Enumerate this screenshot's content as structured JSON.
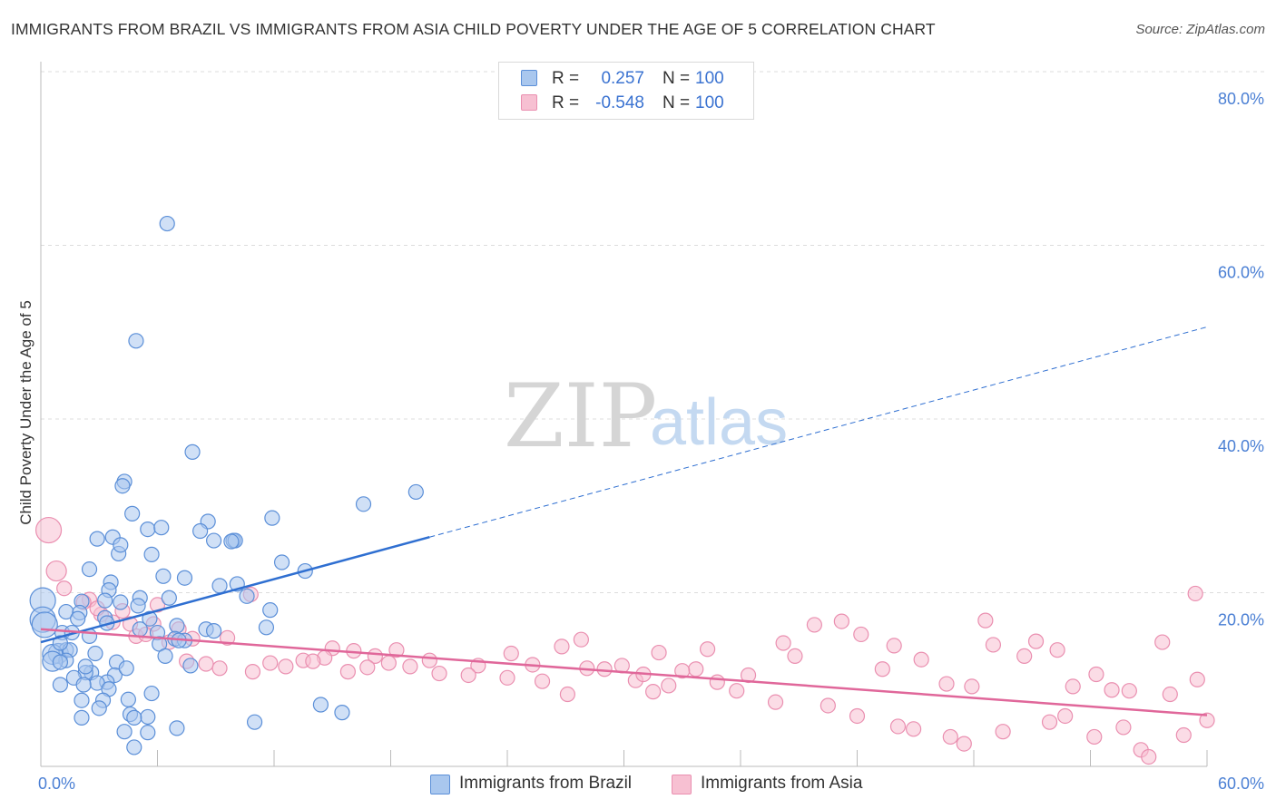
{
  "title": "IMMIGRANTS FROM BRAZIL VS IMMIGRANTS FROM ASIA CHILD POVERTY UNDER THE AGE OF 5 CORRELATION CHART",
  "source": "Source: ZipAtlas.com",
  "watermark": {
    "zip": "ZIP",
    "atlas": "atlas"
  },
  "legend": {
    "series1": {
      "r_label": "R =",
      "r_value": "0.257",
      "n_label": "N =",
      "n_value": "100"
    },
    "series2": {
      "r_label": "R =",
      "r_value": "-0.548",
      "n_label": "N =",
      "n_value": "100"
    }
  },
  "bottom_legend": {
    "series1": "Immigrants from Brazil",
    "series2": "Immigrants from Asia"
  },
  "colors": {
    "brazil_fill": "#a9c7ee",
    "brazil_stroke": "#5b8fd8",
    "brazil_line": "#2f6fd1",
    "asia_fill": "#f7c0d2",
    "asia_stroke": "#ea8fb0",
    "asia_line": "#e0679a",
    "tick": "#4a7fd4",
    "grid": "#dddddd"
  },
  "chart_data": {
    "type": "scatter",
    "title": "IMMIGRANTS FROM BRAZIL VS IMMIGRANTS FROM ASIA CHILD POVERTY UNDER THE AGE OF 5 CORRELATION CHART",
    "xlabel": "",
    "ylabel": "Child Poverty Under the Age of 5",
    "xlim": [
      0,
      60
    ],
    "ylim": [
      0,
      80
    ],
    "x_tick_labels": [
      "0.0%",
      "60.0%"
    ],
    "y_ticks": [
      20,
      40,
      60,
      80
    ],
    "y_tick_labels": [
      "20.0%",
      "40.0%",
      "60.0%",
      "80.0%"
    ],
    "grid": true,
    "legend_position": "top-center",
    "series": [
      {
        "name": "Immigrants from Brazil",
        "r": 0.257,
        "n": 100,
        "trend": {
          "x_solid": [
            0,
            20
          ],
          "y_solid": [
            14.3,
            26.4
          ],
          "x_dashed": [
            20,
            60
          ],
          "y_dashed": [
            26.4,
            50.6
          ]
        },
        "points": [
          [
            6.5,
            62.5
          ],
          [
            4.9,
            49.0
          ],
          [
            7.8,
            36.2
          ],
          [
            4.3,
            32.8
          ],
          [
            4.2,
            32.3
          ],
          [
            19.3,
            31.6
          ],
          [
            16.6,
            30.2
          ],
          [
            4.7,
            29.1
          ],
          [
            8.6,
            28.2
          ],
          [
            11.9,
            28.6
          ],
          [
            5.5,
            27.3
          ],
          [
            6.2,
            27.5
          ],
          [
            8.2,
            27.1
          ],
          [
            3.7,
            26.4
          ],
          [
            2.9,
            26.2
          ],
          [
            9.9,
            26.0
          ],
          [
            10.0,
            26.0
          ],
          [
            4.0,
            24.5
          ],
          [
            5.7,
            24.4
          ],
          [
            4.1,
            25.5
          ],
          [
            12.4,
            23.5
          ],
          [
            13.6,
            22.5
          ],
          [
            2.5,
            22.7
          ],
          [
            6.3,
            21.9
          ],
          [
            7.4,
            21.7
          ],
          [
            3.6,
            21.2
          ],
          [
            10.1,
            21.0
          ],
          [
            3.5,
            20.3
          ],
          [
            10.6,
            19.6
          ],
          [
            0.1,
            19.1
          ],
          [
            5.1,
            19.4
          ],
          [
            2.1,
            19.0
          ],
          [
            3.3,
            19.1
          ],
          [
            4.1,
            18.9
          ],
          [
            11.8,
            18.0
          ],
          [
            1.3,
            17.8
          ],
          [
            2.0,
            17.7
          ],
          [
            1.9,
            17.0
          ],
          [
            0.1,
            16.9
          ],
          [
            0.2,
            16.3
          ],
          [
            3.3,
            17.1
          ],
          [
            5.6,
            17.0
          ],
          [
            5.1,
            15.8
          ],
          [
            6.0,
            15.4
          ],
          [
            7.0,
            16.2
          ],
          [
            8.5,
            15.8
          ],
          [
            1.1,
            15.4
          ],
          [
            1.6,
            15.4
          ],
          [
            2.5,
            15.0
          ],
          [
            6.9,
            14.7
          ],
          [
            7.4,
            14.5
          ],
          [
            6.1,
            14.1
          ],
          [
            0.9,
            13.0
          ],
          [
            1.3,
            13.4
          ],
          [
            1.5,
            13.4
          ],
          [
            0.6,
            12.9
          ],
          [
            1.3,
            12.2
          ],
          [
            0.6,
            12.1
          ],
          [
            1.0,
            12.0
          ],
          [
            6.4,
            12.7
          ],
          [
            3.9,
            12.0
          ],
          [
            7.7,
            11.6
          ],
          [
            2.6,
            10.8
          ],
          [
            2.3,
            10.8
          ],
          [
            3.8,
            10.5
          ],
          [
            1.7,
            10.2
          ],
          [
            3.4,
            9.7
          ],
          [
            2.9,
            9.6
          ],
          [
            2.2,
            9.4
          ],
          [
            1.0,
            9.4
          ],
          [
            3.5,
            8.9
          ],
          [
            5.7,
            8.4
          ],
          [
            4.5,
            7.7
          ],
          [
            3.2,
            7.6
          ],
          [
            2.1,
            7.6
          ],
          [
            14.4,
            7.1
          ],
          [
            3.0,
            6.7
          ],
          [
            4.6,
            6.0
          ],
          [
            5.5,
            5.7
          ],
          [
            4.8,
            5.6
          ],
          [
            15.5,
            6.2
          ],
          [
            2.1,
            5.6
          ],
          [
            11.0,
            5.1
          ],
          [
            7.0,
            4.4
          ],
          [
            5.5,
            3.9
          ],
          [
            4.3,
            4.0
          ],
          [
            4.8,
            2.2
          ],
          [
            2.3,
            11.5
          ],
          [
            8.9,
            15.6
          ],
          [
            9.2,
            20.8
          ],
          [
            6.6,
            19.4
          ],
          [
            8.9,
            26.0
          ],
          [
            2.8,
            13.0
          ],
          [
            4.4,
            11.3
          ],
          [
            7.1,
            14.5
          ],
          [
            11.6,
            16.0
          ],
          [
            3.4,
            16.5
          ],
          [
            1.0,
            14.2
          ],
          [
            9.8,
            25.9
          ],
          [
            5.0,
            18.5
          ]
        ]
      },
      {
        "name": "Immigrants from Asia",
        "r": -0.548,
        "n": 100,
        "trend": {
          "x": [
            0,
            60
          ],
          "y": [
            15.8,
            5.9
          ]
        },
        "points": [
          [
            0.4,
            27.2
          ],
          [
            0.8,
            22.5
          ],
          [
            1.2,
            20.5
          ],
          [
            2.5,
            19.2
          ],
          [
            2.2,
            18.9
          ],
          [
            6.0,
            18.6
          ],
          [
            10.8,
            19.8
          ],
          [
            3.1,
            17.5
          ],
          [
            3.7,
            16.6
          ],
          [
            4.2,
            17.9
          ],
          [
            5.8,
            16.4
          ],
          [
            7.1,
            15.8
          ],
          [
            4.9,
            15.0
          ],
          [
            9.6,
            14.8
          ],
          [
            7.8,
            14.7
          ],
          [
            6.6,
            14.3
          ],
          [
            16.1,
            13.3
          ],
          [
            15.0,
            13.6
          ],
          [
            14.6,
            12.5
          ],
          [
            13.5,
            12.2
          ],
          [
            17.2,
            12.7
          ],
          [
            18.3,
            13.4
          ],
          [
            20.0,
            12.2
          ],
          [
            22.5,
            11.6
          ],
          [
            24.2,
            13.0
          ],
          [
            25.3,
            11.7
          ],
          [
            26.8,
            13.8
          ],
          [
            27.8,
            14.6
          ],
          [
            28.1,
            11.3
          ],
          [
            29.9,
            11.6
          ],
          [
            30.6,
            9.9
          ],
          [
            31.0,
            10.6
          ],
          [
            32.3,
            9.3
          ],
          [
            31.5,
            8.6
          ],
          [
            33.7,
            11.2
          ],
          [
            34.3,
            13.5
          ],
          [
            35.8,
            8.7
          ],
          [
            37.8,
            7.4
          ],
          [
            38.2,
            14.2
          ],
          [
            39.8,
            16.3
          ],
          [
            41.2,
            16.7
          ],
          [
            42.2,
            15.2
          ],
          [
            43.3,
            11.2
          ],
          [
            43.9,
            13.9
          ],
          [
            45.3,
            12.3
          ],
          [
            46.6,
            9.5
          ],
          [
            47.9,
            9.2
          ],
          [
            48.6,
            16.8
          ],
          [
            49.0,
            14.0
          ],
          [
            50.6,
            12.7
          ],
          [
            51.2,
            14.4
          ],
          [
            52.3,
            13.4
          ],
          [
            53.1,
            9.2
          ],
          [
            54.3,
            10.6
          ],
          [
            55.1,
            8.8
          ],
          [
            56.0,
            8.7
          ],
          [
            57.7,
            14.3
          ],
          [
            58.1,
            8.3
          ],
          [
            59.5,
            10.0
          ],
          [
            59.4,
            19.9
          ],
          [
            40.5,
            7.0
          ],
          [
            42.0,
            5.8
          ],
          [
            44.1,
            4.6
          ],
          [
            44.9,
            4.3
          ],
          [
            46.8,
            3.4
          ],
          [
            47.5,
            2.6
          ],
          [
            49.5,
            4.0
          ],
          [
            51.9,
            5.1
          ],
          [
            52.7,
            5.8
          ],
          [
            54.2,
            3.4
          ],
          [
            55.7,
            4.5
          ],
          [
            56.6,
            1.9
          ],
          [
            57.0,
            1.1
          ],
          [
            58.8,
            3.6
          ],
          [
            60.0,
            5.3
          ],
          [
            38.8,
            12.7
          ],
          [
            36.4,
            10.5
          ],
          [
            34.8,
            9.7
          ],
          [
            33.0,
            11.0
          ],
          [
            31.8,
            13.1
          ],
          [
            29.0,
            11.2
          ],
          [
            27.1,
            8.3
          ],
          [
            25.8,
            9.8
          ],
          [
            24.0,
            10.2
          ],
          [
            22.0,
            10.5
          ],
          [
            20.5,
            10.7
          ],
          [
            19.0,
            11.5
          ],
          [
            17.9,
            11.9
          ],
          [
            16.8,
            11.4
          ],
          [
            15.8,
            10.9
          ],
          [
            14.0,
            12.1
          ],
          [
            12.6,
            11.5
          ],
          [
            11.8,
            11.9
          ],
          [
            10.9,
            10.9
          ],
          [
            9.2,
            11.3
          ],
          [
            8.5,
            11.8
          ],
          [
            7.5,
            12.1
          ],
          [
            5.4,
            15.2
          ],
          [
            4.6,
            16.4
          ],
          [
            2.9,
            18.2
          ]
        ]
      }
    ]
  }
}
